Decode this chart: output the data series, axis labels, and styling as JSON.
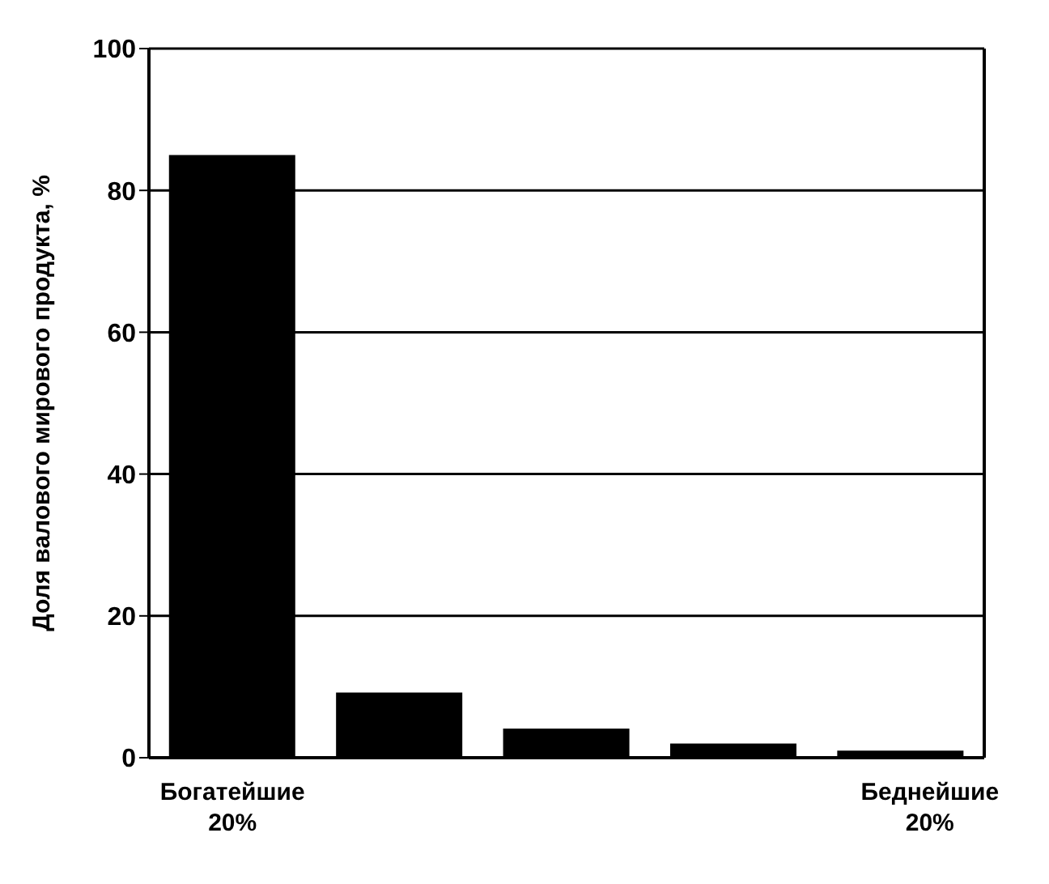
{
  "chart_data": {
    "type": "bar",
    "ylabel": "Доля валового мирового продукта, %",
    "categories": [
      "Богатейшие 20%",
      null,
      null,
      null,
      "Беднейшие 20%"
    ],
    "values": [
      85,
      9.2,
      4.1,
      2,
      1
    ],
    "color": "#000000",
    "ylim": [
      0,
      100
    ],
    "yticks": [
      0,
      20,
      40,
      60,
      80,
      100
    ],
    "grid": "y"
  }
}
